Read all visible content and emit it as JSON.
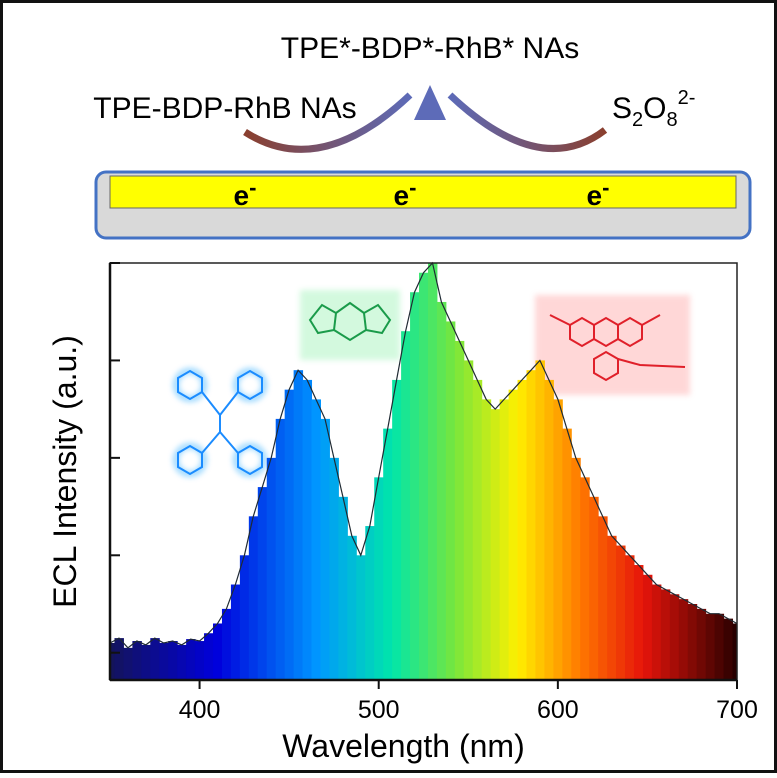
{
  "header": {
    "product": "TPE*-BDP*-RhB* NAs",
    "reactant": "TPE-BDP-RhB NAs",
    "coreactant": {
      "parts": [
        "S",
        "2",
        "O",
        "8",
        "2-"
      ]
    },
    "electrons": [
      {
        "symbol": "e",
        "charge": "-"
      },
      {
        "symbol": "e",
        "charge": "-"
      },
      {
        "symbol": "e",
        "charge": "-"
      }
    ]
  },
  "chart_data": {
    "type": "spectrum",
    "xlabel": "Wavelength (nm)",
    "ylabel": "ECL Intensity (a.u.)",
    "x": [
      350,
      355,
      360,
      365,
      370,
      375,
      380,
      385,
      390,
      395,
      400,
      405,
      410,
      415,
      420,
      425,
      430,
      435,
      440,
      445,
      450,
      455,
      460,
      465,
      470,
      475,
      480,
      485,
      490,
      495,
      500,
      505,
      510,
      515,
      520,
      525,
      530,
      535,
      540,
      545,
      550,
      555,
      560,
      565,
      570,
      575,
      580,
      585,
      590,
      595,
      600,
      605,
      610,
      615,
      620,
      625,
      630,
      635,
      640,
      645,
      650,
      655,
      660,
      665,
      670,
      675,
      680,
      685,
      690,
      695,
      700
    ],
    "values": [
      0.1,
      0.15,
      0.05,
      0.12,
      0.08,
      0.15,
      0.1,
      0.12,
      0.08,
      0.14,
      0.12,
      0.2,
      0.3,
      0.45,
      0.7,
      1.0,
      1.4,
      1.7,
      2.0,
      2.4,
      2.7,
      2.9,
      2.8,
      2.6,
      2.4,
      2.0,
      1.6,
      1.2,
      1.0,
      1.3,
      1.8,
      2.3,
      2.8,
      3.3,
      3.7,
      3.9,
      4.0,
      3.6,
      3.4,
      3.2,
      3.0,
      2.8,
      2.6,
      2.5,
      2.6,
      2.7,
      2.8,
      2.9,
      3.0,
      2.8,
      2.6,
      2.3,
      2.0,
      1.8,
      1.6,
      1.4,
      1.2,
      1.1,
      1.0,
      0.9,
      0.8,
      0.7,
      0.65,
      0.6,
      0.55,
      0.5,
      0.45,
      0.4,
      0.4,
      0.35,
      0.3
    ],
    "xlim": [
      350,
      700
    ],
    "xticks": [
      400,
      500,
      600,
      700
    ],
    "ylim": [
      -0.28,
      4.0
    ],
    "yticks": [
      0,
      1,
      2,
      3,
      4
    ]
  }
}
